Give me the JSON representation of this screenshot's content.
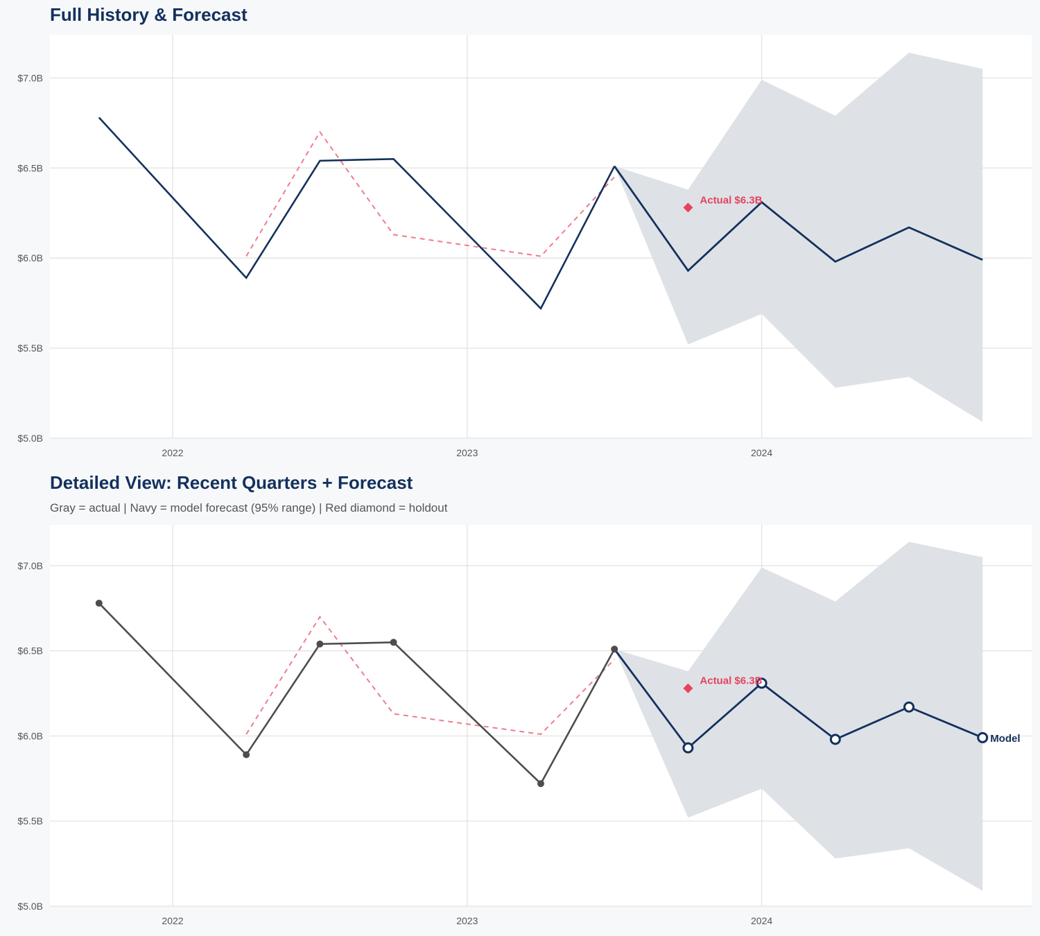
{
  "colors": {
    "navy": "#13315c",
    "gray": "#4d4d4d",
    "red": "#e5435f",
    "red_dashed": "#f07b8c",
    "band": "#dce0e6",
    "grid": "#e3e3e3"
  },
  "chart_data": [
    {
      "type": "line",
      "title": "Full History & Forecast",
      "subtitle": "",
      "ylim": [
        5.0,
        7.24
      ],
      "xlim": [
        "2021-08",
        "2024-12"
      ],
      "yticks": [
        "$5.0B",
        "$5.5B",
        "$6.0B",
        "$6.5B",
        "$7.0B"
      ],
      "ytick_values": [
        5.0,
        5.5,
        6.0,
        6.5,
        7.0
      ],
      "xticks": [
        "2022",
        "2023",
        "2024"
      ],
      "grid": true,
      "history": {
        "x": [
          "2021-10",
          "2022-04",
          "2022-07",
          "2022-10",
          "2023-04",
          "2023-07"
        ],
        "y": [
          6.78,
          5.89,
          6.54,
          6.55,
          5.72,
          6.51
        ]
      },
      "forecast": {
        "x": [
          "2023-07",
          "2023-10",
          "2024-01",
          "2024-04",
          "2024-07",
          "2024-10"
        ],
        "y": [
          6.51,
          5.93,
          6.31,
          5.98,
          6.17,
          5.99
        ],
        "lower": [
          6.51,
          5.52,
          5.69,
          5.28,
          5.34,
          5.09
        ],
        "upper": [
          6.51,
          6.38,
          6.99,
          6.79,
          7.14,
          7.05
        ]
      },
      "fitted": {
        "x": [
          "2022-04",
          "2022-07",
          "2022-10",
          "2023-04",
          "2023-07"
        ],
        "y": [
          6.01,
          6.7,
          6.13,
          6.01,
          6.45
        ]
      },
      "holdout": {
        "x": "2023-10",
        "y": 6.28,
        "label": "Actual $6.3B"
      },
      "history_markers": false
    },
    {
      "type": "line",
      "title": "Detailed View: Recent Quarters + Forecast",
      "subtitle": "Gray = actual  |  Navy = model forecast (95% range)  |  Red diamond = holdout",
      "ylim": [
        5.0,
        7.24
      ],
      "xlim": [
        "2021-08",
        "2024-12"
      ],
      "yticks": [
        "$5.0B",
        "$5.5B",
        "$6.0B",
        "$6.5B",
        "$7.0B"
      ],
      "ytick_values": [
        5.0,
        5.5,
        6.0,
        6.5,
        7.0
      ],
      "xticks": [
        "2022",
        "2023",
        "2024"
      ],
      "grid": true,
      "history": {
        "x": [
          "2021-10",
          "2022-04",
          "2022-07",
          "2022-10",
          "2023-04",
          "2023-07"
        ],
        "y": [
          6.78,
          5.89,
          6.54,
          6.55,
          5.72,
          6.51
        ]
      },
      "forecast": {
        "x": [
          "2023-07",
          "2023-10",
          "2024-01",
          "2024-04",
          "2024-07",
          "2024-10"
        ],
        "y": [
          6.51,
          5.93,
          6.31,
          5.98,
          6.17,
          5.99
        ],
        "lower": [
          6.51,
          5.52,
          5.69,
          5.28,
          5.34,
          5.09
        ],
        "upper": [
          6.51,
          6.38,
          6.99,
          6.79,
          7.14,
          7.05
        ],
        "label": "Model"
      },
      "fitted": {
        "x": [
          "2022-04",
          "2022-07",
          "2022-10",
          "2023-04",
          "2023-07"
        ],
        "y": [
          6.01,
          6.7,
          6.13,
          6.01,
          6.45
        ]
      },
      "holdout": {
        "x": "2023-10",
        "y": 6.28,
        "label": "Actual $6.3B"
      },
      "history_markers": true
    }
  ]
}
